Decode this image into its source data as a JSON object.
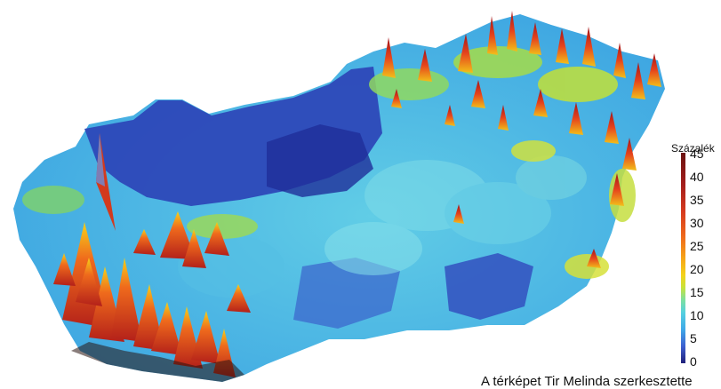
{
  "legend": {
    "title": "Százalék",
    "ticks": [
      "45",
      "40",
      "35",
      "30",
      "25",
      "20",
      "15",
      "10",
      "5",
      "0"
    ]
  },
  "credit": "A térképet Tir Melinda szerkesztette",
  "colors": {
    "low": "#2a3fae",
    "mid": "#58c8e6",
    "high": "#c8221c"
  }
}
